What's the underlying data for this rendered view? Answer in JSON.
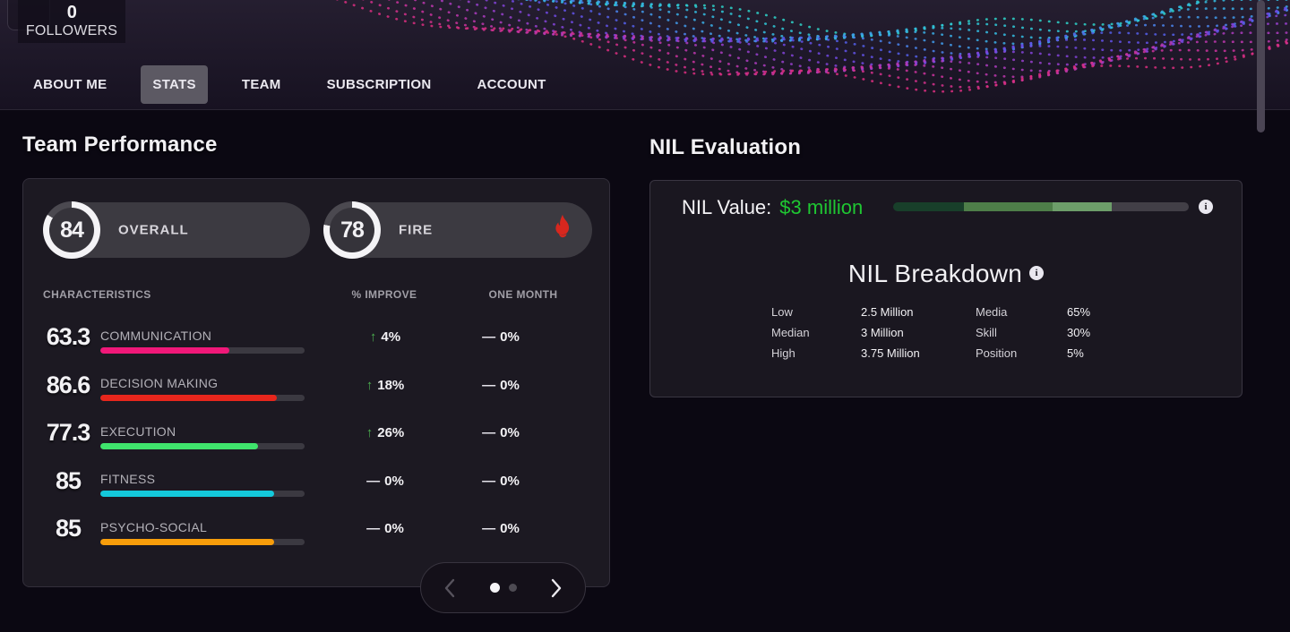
{
  "profile": {
    "followers_count": "0",
    "followers_label": "FOLLOWERS"
  },
  "nav": {
    "active_tab": "STATS",
    "tabs": [
      {
        "label": "ABOUT ME"
      },
      {
        "label": "STATS"
      },
      {
        "label": "TEAM"
      },
      {
        "label": "SUBSCRIPTION"
      },
      {
        "label": "ACCOUNT"
      }
    ]
  },
  "team_performance": {
    "title": "Team Performance",
    "gauges": [
      {
        "value": "84",
        "label": "OVERALL"
      },
      {
        "value": "78",
        "label": "FIRE",
        "icon": "fire-icon"
      }
    ],
    "table": {
      "headers": [
        "CHARACTERISTICS",
        "% IMPROVE",
        "ONE MONTH"
      ],
      "rows": [
        {
          "value": "63.3",
          "label": "COMMUNICATION",
          "bar_width": "63.3%",
          "bar_color": "#f01879",
          "improve_icon": "↑",
          "improve_icon_color": "#4caf50",
          "improve_value": "4%",
          "one_month_icon": "—",
          "one_month_value": "0%"
        },
        {
          "value": "86.6",
          "label": "DECISION MAKING",
          "bar_width": "86.6%",
          "bar_color": "#e7261c",
          "improve_icon": "↑",
          "improve_icon_color": "#4caf50",
          "improve_value": "18%",
          "one_month_icon": "—",
          "one_month_value": "0%"
        },
        {
          "value": "77.3",
          "label": "EXECUTION",
          "bar_width": "77.3%",
          "bar_color": "#3fe46c",
          "improve_icon": "↑",
          "improve_icon_color": "#4caf50",
          "improve_value": "26%",
          "one_month_icon": "—",
          "one_month_value": "0%"
        },
        {
          "value": "85",
          "label": "FITNESS",
          "bar_width": "85%",
          "bar_color": "#14c9db",
          "improve_icon": "—",
          "improve_icon_color": "#e9e7ee",
          "improve_value": "0%",
          "one_month_icon": "—",
          "one_month_value": "0%"
        },
        {
          "value": "85",
          "label": "PSYCHO-SOCIAL",
          "bar_width": "85%",
          "bar_color": "#f79d0b",
          "improve_icon": "—",
          "improve_icon_color": "#e9e7ee",
          "improve_value": "0%",
          "one_month_icon": "—",
          "one_month_value": "0%"
        }
      ]
    },
    "carousel": {
      "dot_count": 2,
      "active_dot": 0
    }
  },
  "nil_evaluation": {
    "title": "NIL Evaluation",
    "value_label": "NIL Value:",
    "value": "$3 million",
    "value_color": "#1fc732",
    "bar": {
      "segments": [
        {
          "width": "24%",
          "color": "#183f2a"
        },
        {
          "width": "30%",
          "color": "#4e7e49"
        },
        {
          "width": "20%",
          "color": "#6d9e6a"
        },
        {
          "width": "26%",
          "color": "#423f47"
        }
      ]
    },
    "info_icon": "i",
    "breakdown": {
      "title": "NIL Breakdown",
      "info_icon": "i",
      "left_rows": [
        {
          "label": "Low",
          "value": "2.5 Million"
        },
        {
          "label": "Median",
          "value": "3 Million"
        },
        {
          "label": "High",
          "value": "3.75 Million"
        }
      ],
      "right_rows": [
        {
          "label": "Media",
          "value": "65%"
        },
        {
          "label": "Skill",
          "value": "30%"
        },
        {
          "label": "Position",
          "value": "5%"
        }
      ]
    }
  }
}
